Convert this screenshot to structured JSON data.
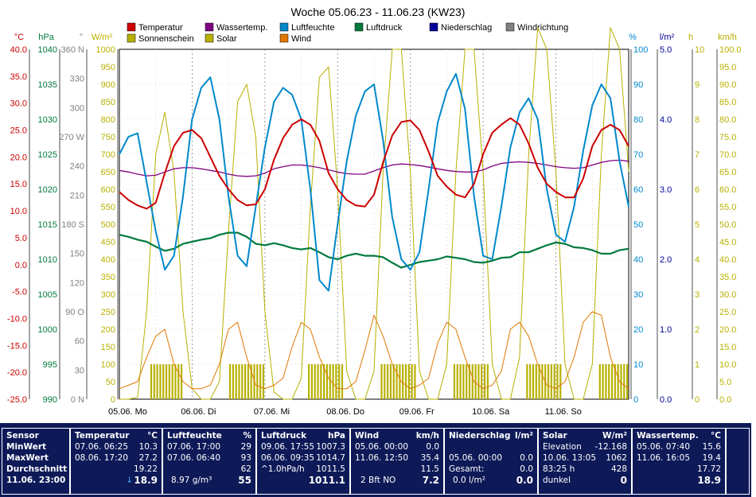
{
  "chart_data": {
    "type": "line",
    "title": "Woche 05.06.23 - 11.06.23 (KW23)",
    "x_start": "05.06.",
    "x_end": "11.06. 23:00",
    "day_labels": [
      "05.06.  Mo",
      "06.06.  Di",
      "07.06.  Mi",
      "08.06.  Do",
      "09.06.  Fr",
      "10.06.  Sa",
      "11.06.  So"
    ],
    "legend": [
      {
        "name": "Temperatur",
        "color": "#cc0000"
      },
      {
        "name": "Wassertemp.",
        "color": "#800080"
      },
      {
        "name": "Luftfeuchte",
        "color": "#0088cc"
      },
      {
        "name": "Luftdruck",
        "color": "#007a3d"
      },
      {
        "name": "Niederschlag",
        "color": "#000099"
      },
      {
        "name": "Windrichtung",
        "color": "#808080"
      },
      {
        "name": "Sonnenschein",
        "color": "#b8b000"
      },
      {
        "name": "Solar",
        "color": "#b8b000"
      },
      {
        "name": "Wind",
        "color": "#e07800"
      }
    ],
    "axes": [
      {
        "unit": "°C",
        "color": "#cc0000",
        "ticks": [
          "40.0",
          "35.0",
          "30.0",
          "25.0",
          "20.0",
          "15.0",
          "10.0",
          "5.0",
          "0.0",
          "-5.0",
          "-10.0",
          "-15.0",
          "-20.0",
          "-25.0"
        ]
      },
      {
        "unit": "hPa",
        "color": "#007a3d",
        "ticks": [
          "1040",
          "1035",
          "1030",
          "1025",
          "1020",
          "1015",
          "1010",
          "1005",
          "1000",
          "995",
          "990"
        ]
      },
      {
        "unit": "°",
        "color": "#808080",
        "ticks": [
          "360 N",
          "330",
          "300",
          "270 W",
          "240",
          "210",
          "180 S",
          "150",
          "120",
          "90 O",
          "60",
          "30",
          "0 N"
        ]
      },
      {
        "unit": "W/m²",
        "color": "#b8b000",
        "ticks": [
          "1000",
          "950",
          "900",
          "850",
          "800",
          "750",
          "700",
          "650",
          "600",
          "550",
          "500",
          "450",
          "400",
          "350",
          "300",
          "250",
          "200",
          "150",
          "100",
          "50",
          "0"
        ]
      },
      {
        "unit": "%",
        "color": "#0088cc",
        "ticks": [
          "100",
          "90",
          "80",
          "70",
          "60",
          "50",
          "40",
          "30",
          "20",
          "10",
          "0"
        ]
      },
      {
        "unit": "l/m²",
        "color": "#000099",
        "ticks": [
          "5.0",
          "4.0",
          "3.0",
          "2.0",
          "1.0",
          "0.0"
        ]
      },
      {
        "unit": "h",
        "color": "#b8b000",
        "ticks": [
          "10",
          "9",
          "8",
          "7",
          "6",
          "5",
          "4",
          "3",
          "2",
          "1",
          "0"
        ]
      },
      {
        "unit": "km/h",
        "color": "#b8b000",
        "ticks": [
          "100.0",
          "95.0",
          "90.0",
          "85.0",
          "80.0",
          "75.0",
          "70.0",
          "65.0",
          "60.0",
          "55.0",
          "50.0",
          "45.0",
          "40.0",
          "35.0",
          "30.0",
          "25.0",
          "20.0",
          "15.0",
          "10.0",
          "5.0",
          "0.0"
        ]
      }
    ],
    "ranges": {
      "temp": [
        -25,
        40
      ],
      "pressure": [
        990,
        1040
      ],
      "direction": [
        0,
        360
      ],
      "solar": [
        0,
        1000
      ],
      "humidity": [
        0,
        100
      ],
      "rain": [
        0,
        5
      ],
      "sun_hours": [
        0,
        10
      ],
      "wind": [
        0,
        100
      ]
    },
    "grid": true,
    "x_hours": [
      0,
      3,
      6,
      9,
      12,
      15,
      18,
      21,
      24,
      27,
      30,
      33,
      36,
      39,
      42,
      45,
      48,
      51,
      54,
      57,
      60,
      63,
      66,
      69,
      72,
      75,
      78,
      81,
      84,
      87,
      90,
      93,
      96,
      99,
      102,
      105,
      108,
      111,
      114,
      117,
      120,
      123,
      126,
      129,
      132,
      135,
      138,
      141,
      144,
      147,
      150,
      153,
      156,
      159,
      162,
      165,
      168
    ],
    "series": [
      {
        "name": "Temperatur",
        "color": "#cc0000",
        "values": [
          13.5,
          12.0,
          11.0,
          10.4,
          11.5,
          17.0,
          22.0,
          24.5,
          25.0,
          23.5,
          20.0,
          16.5,
          14.0,
          12.0,
          11.0,
          11.2,
          14.0,
          19.5,
          23.5,
          26.0,
          27.0,
          26.0,
          23.0,
          17.0,
          14.0,
          12.0,
          11.0,
          10.8,
          13.0,
          19.0,
          24.0,
          26.5,
          26.8,
          25.0,
          21.0,
          16.5,
          14.5,
          13.0,
          12.5,
          15.0,
          20.5,
          24.5,
          26.0,
          27.2,
          26.0,
          22.5,
          18.0,
          15.0,
          13.5,
          12.5,
          12.5,
          16.0,
          22.0,
          25.0,
          26.0,
          25.0,
          22.0
        ]
      },
      {
        "name": "Wassertemp.",
        "color": "#800080",
        "values": [
          17.5,
          17.2,
          16.8,
          16.5,
          16.6,
          17.2,
          17.8,
          18.0,
          18.0,
          17.8,
          17.5,
          17.2,
          16.8,
          16.5,
          16.4,
          16.5,
          17.0,
          17.8,
          18.2,
          18.5,
          18.5,
          18.3,
          18.0,
          17.6,
          17.2,
          16.9,
          16.8,
          16.8,
          17.4,
          18.0,
          18.5,
          18.7,
          18.6,
          18.4,
          18.1,
          17.8,
          17.5,
          17.3,
          17.2,
          17.2,
          17.6,
          18.3,
          18.8,
          19.0,
          19.1,
          19.0,
          18.8,
          18.5,
          18.2,
          18.0,
          17.9,
          18.0,
          18.5,
          19.0,
          19.3,
          19.4,
          19.2
        ]
      },
      {
        "name": "Luftfeuchte",
        "color": "#0088cc",
        "values": [
          70,
          75,
          76,
          62,
          48,
          37,
          41,
          58,
          80,
          89,
          92,
          80,
          58,
          41,
          38,
          55,
          72,
          85,
          89,
          87,
          80,
          60,
          34,
          31,
          50,
          68,
          81,
          88,
          90,
          74,
          52,
          40,
          37,
          42,
          60,
          79,
          88,
          93,
          83,
          58,
          41,
          40,
          55,
          72,
          82,
          86,
          80,
          60,
          47,
          45,
          55,
          71,
          84,
          90,
          86,
          68,
          55
        ]
      },
      {
        "name": "Luftdruck",
        "color": "#007a3d",
        "values": [
          1013.5,
          1013.2,
          1012.8,
          1012.5,
          1011.8,
          1011.2,
          1011.5,
          1012.2,
          1012.5,
          1012.8,
          1013.0,
          1013.5,
          1013.8,
          1013.8,
          1013.2,
          1012.2,
          1012.0,
          1012.3,
          1012.0,
          1011.6,
          1011.4,
          1011.6,
          1011.0,
          1010.3,
          1010.0,
          1010.5,
          1010.8,
          1010.5,
          1010.5,
          1010.3,
          1009.5,
          1008.8,
          1009.2,
          1009.6,
          1009.8,
          1010.0,
          1010.4,
          1010.2,
          1010.0,
          1009.6,
          1009.5,
          1009.8,
          1010.2,
          1010.3,
          1011.0,
          1011.0,
          1011.5,
          1012.0,
          1012.4,
          1012.2,
          1011.7,
          1011.6,
          1011.3,
          1010.8,
          1010.8,
          1011.3,
          1011.5
        ]
      },
      {
        "name": "Solar",
        "color": "#b8b000",
        "values": [
          0,
          0,
          5,
          250,
          700,
          820,
          650,
          250,
          30,
          0,
          0,
          50,
          480,
          850,
          900,
          750,
          250,
          20,
          0,
          0,
          60,
          550,
          920,
          950,
          600,
          80,
          0,
          0,
          80,
          650,
          1000,
          1000,
          650,
          80,
          0,
          0,
          100,
          650,
          1000,
          1000,
          650,
          100,
          0,
          0,
          120,
          700,
          1062,
          1000,
          650,
          100,
          0,
          0,
          100,
          700,
          1062,
          1000,
          650
        ]
      },
      {
        "name": "Wind",
        "color": "#e07800",
        "values": [
          3,
          4,
          5,
          12,
          18,
          20,
          10,
          5,
          3,
          3,
          4,
          10,
          20,
          22,
          12,
          4,
          3,
          4,
          6,
          15,
          22,
          20,
          12,
          6,
          3,
          3,
          5,
          14,
          24,
          18,
          10,
          5,
          3,
          4,
          6,
          16,
          22,
          20,
          12,
          5,
          3,
          4,
          8,
          20,
          22,
          18,
          10,
          4,
          3,
          5,
          12,
          22,
          25,
          24,
          12,
          5,
          3
        ]
      }
    ]
  },
  "table": {
    "sensor": {
      "title": "Sensor",
      "rows": [
        "MinWert",
        "MaxWert",
        "Durchschnitt"
      ],
      "time": "11.06. 23:00"
    },
    "temperature": {
      "title": "Temperatur",
      "unit": "°C",
      "r1": [
        "07.06.  06:25",
        "10.3"
      ],
      "r2": [
        "08.06.  17:20",
        "27.2"
      ],
      "r3": "19.22",
      "current": "18.9"
    },
    "humidity": {
      "title": "Luftfeuchte",
      "unit": "%",
      "r1": [
        "07.06.  17:00",
        "29"
      ],
      "r2": [
        "07.06.  06:40",
        "93"
      ],
      "r3": "62",
      "abs": "8.97 g/m³",
      "current": "55"
    },
    "pressure": {
      "title": "Luftdruck",
      "unit": "hPa",
      "r1": [
        "09.06.  17:55",
        "1007.3"
      ],
      "r2": [
        "06.06.  09:35",
        "1014.7"
      ],
      "r3": [
        "^1.0hPa/h",
        "1011.5"
      ],
      "current": "1011.1"
    },
    "wind": {
      "title": "Wind",
      "unit": "km/h",
      "r1": [
        "05.06.  00:00",
        "0.0"
      ],
      "r2": [
        "11.06.  12:50",
        "35.4"
      ],
      "r3": "11.5",
      "dir": "2 Bft NO",
      "current": "7.2"
    },
    "rain": {
      "title": "Niederschlag",
      "unit": "l/m²",
      "r2": [
        "05.06.  00:00",
        "0.0"
      ],
      "r3": [
        "Gesamt:",
        "0.0"
      ],
      "rate": "0.0 l/m²",
      "current": "0.0"
    },
    "solar": {
      "title": "Solar",
      "unit": "W/m²",
      "r1": [
        "Elevation",
        "-12.168"
      ],
      "r2": [
        "10.06.  13:05",
        "1062"
      ],
      "r3": [
        "83:25 h",
        "428"
      ],
      "state": "dunkel",
      "current": "0"
    },
    "water": {
      "title": "Wassertemp.",
      "unit": "°C",
      "r1": [
        "05.06.  07:40",
        "15.6"
      ],
      "r2": [
        "11.06.  16:05",
        "19.4"
      ],
      "r3": "17.72",
      "current": "18.9"
    }
  }
}
